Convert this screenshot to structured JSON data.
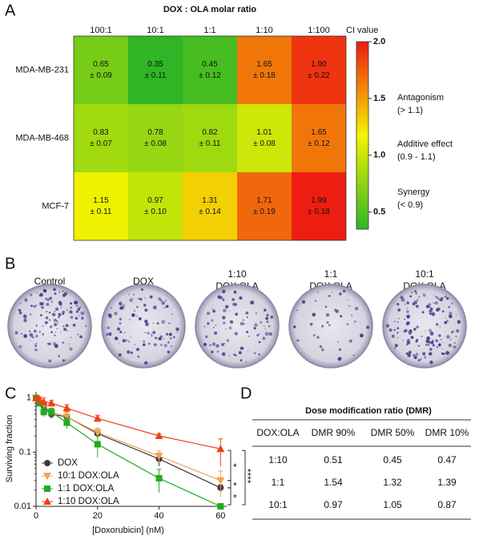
{
  "panel_labels": [
    "A",
    "B",
    "C",
    "D"
  ],
  "chart_data": [
    {
      "type": "heatmap",
      "title": "DOX : OLA molar ratio",
      "categories": [
        "100:1",
        "10:1",
        "1:1",
        "1:10",
        "1:100"
      ],
      "rows": [
        "MDA-MB-231",
        "MDA-MB-468",
        "MCF-7"
      ],
      "values": [
        [
          0.65,
          0.35,
          0.45,
          1.65,
          1.9
        ],
        [
          0.83,
          0.78,
          0.82,
          1.01,
          1.65
        ],
        [
          1.15,
          0.97,
          1.31,
          1.71,
          1.99
        ]
      ],
      "value_labels": [
        [
          "0.65",
          "0.35",
          "0.45",
          "1.65",
          "1.90"
        ],
        [
          "0.83",
          "0.78",
          "0.82",
          "1.01",
          "1.65"
        ],
        [
          "1.15",
          "0.97",
          "1.31",
          "1.71",
          "1.99"
        ]
      ],
      "errors": [
        [
          0.09,
          0.11,
          0.12,
          0.18,
          0.22
        ],
        [
          0.07,
          0.08,
          0.11,
          0.08,
          0.12
        ],
        [
          0.11,
          0.1,
          0.14,
          0.19,
          0.18
        ]
      ],
      "error_labels": [
        [
          "± 0.09",
          "± 0.11",
          "± 0.12",
          "± 0.18",
          "± 0.22"
        ],
        [
          "± 0.07",
          "± 0.08",
          "± 0.11",
          "± 0.08",
          "± 0.12"
        ],
        [
          "± 0.11",
          "± 0.10",
          "± 0.14",
          "± 0.19",
          "± 0.18"
        ]
      ],
      "colorbar_label": "CI value",
      "clim": [
        0.35,
        2.0
      ],
      "cticks": [
        0.5,
        {
          "value": 1.0,
          "label": "1.0"
        },
        1.5,
        {
          "value": 2.0,
          "label": "2.0"
        }
      ],
      "colormap": [
        "#2fb526",
        "#f4f400",
        "#ee1a12"
      ],
      "annotations": [
        [
          "Antagonism",
          "(> 1.1)"
        ],
        [
          "Additive effect",
          "(0.9 - 1.1)"
        ],
        [
          "Synergy",
          "(< 0.9)"
        ]
      ]
    },
    {
      "type": "line",
      "xlabel": "[Doxorubicin] (nM)",
      "ylabel": "Surviving fraction",
      "x": [
        0,
        1,
        2.5,
        5,
        10,
        20,
        40,
        60
      ],
      "xlim": [
        0,
        62
      ],
      "xticks": [
        0,
        20,
        40,
        60
      ],
      "ylim": [
        0.01,
        1.3
      ],
      "yticks": [
        0.01,
        0.1,
        1
      ],
      "log_y": true,
      "legend": "lower left",
      "series": [
        {
          "name": "DOX",
          "color": "#3a3a3a",
          "marker": "circle",
          "values": [
            1,
            0.85,
            0.7,
            0.5,
            0.45,
            0.22,
            0.075,
            0.022
          ],
          "errors": [
            0.05,
            0.1,
            0.1,
            0.08,
            0.1,
            0.04,
            0.02,
            0.003
          ]
        },
        {
          "name": "10:1 DOX:OLA",
          "color": "#f5a050",
          "marker": "triangle-down",
          "values": [
            1,
            0.9,
            0.75,
            0.55,
            0.45,
            0.23,
            0.085,
            0.03
          ],
          "errors": [
            0.05,
            0.1,
            0.1,
            0.1,
            0.1,
            0.05,
            0.02,
            0.015
          ]
        },
        {
          "name": "1:1 DOX:OLA",
          "color": "#22aa22",
          "marker": "square",
          "values": [
            1,
            0.8,
            0.55,
            0.55,
            0.35,
            0.14,
            0.033,
            0.01
          ],
          "errors": [
            0.05,
            0.1,
            0.1,
            0.1,
            0.08,
            0.06,
            0.015,
            0.001
          ]
        },
        {
          "name": "1:10 DOX:OLA",
          "color": "#f0401a",
          "marker": "triangle-up",
          "values": [
            1,
            0.95,
            0.85,
            0.8,
            0.65,
            0.42,
            0.2,
            0.115
          ],
          "errors": [
            0.05,
            0.1,
            0.15,
            0.1,
            0.1,
            0.06,
            0.02,
            0.06
          ]
        }
      ],
      "annotations": [
        "*",
        "*",
        "****",
        "*"
      ]
    }
  ],
  "colony_panel": {
    "labels": [
      [
        "Control"
      ],
      [
        "DOX"
      ],
      [
        "1:10",
        "DOX:OLA"
      ],
      [
        "1:1",
        "DOX:OLA"
      ],
      [
        "10:1",
        "DOX:OLA"
      ]
    ]
  },
  "table": {
    "title": "Dose modification ratio (DMR)",
    "header": [
      "DOX:OLA",
      "DMR 90%",
      "DMR 50%",
      "DMR 10%"
    ],
    "rows": [
      [
        "1:10",
        "0.51",
        "0.45",
        "0.47"
      ],
      [
        "1:1",
        "1.54",
        "1.32",
        "1.39"
      ],
      [
        "10:1",
        "0.97",
        "1.05",
        "0.87"
      ]
    ]
  }
}
